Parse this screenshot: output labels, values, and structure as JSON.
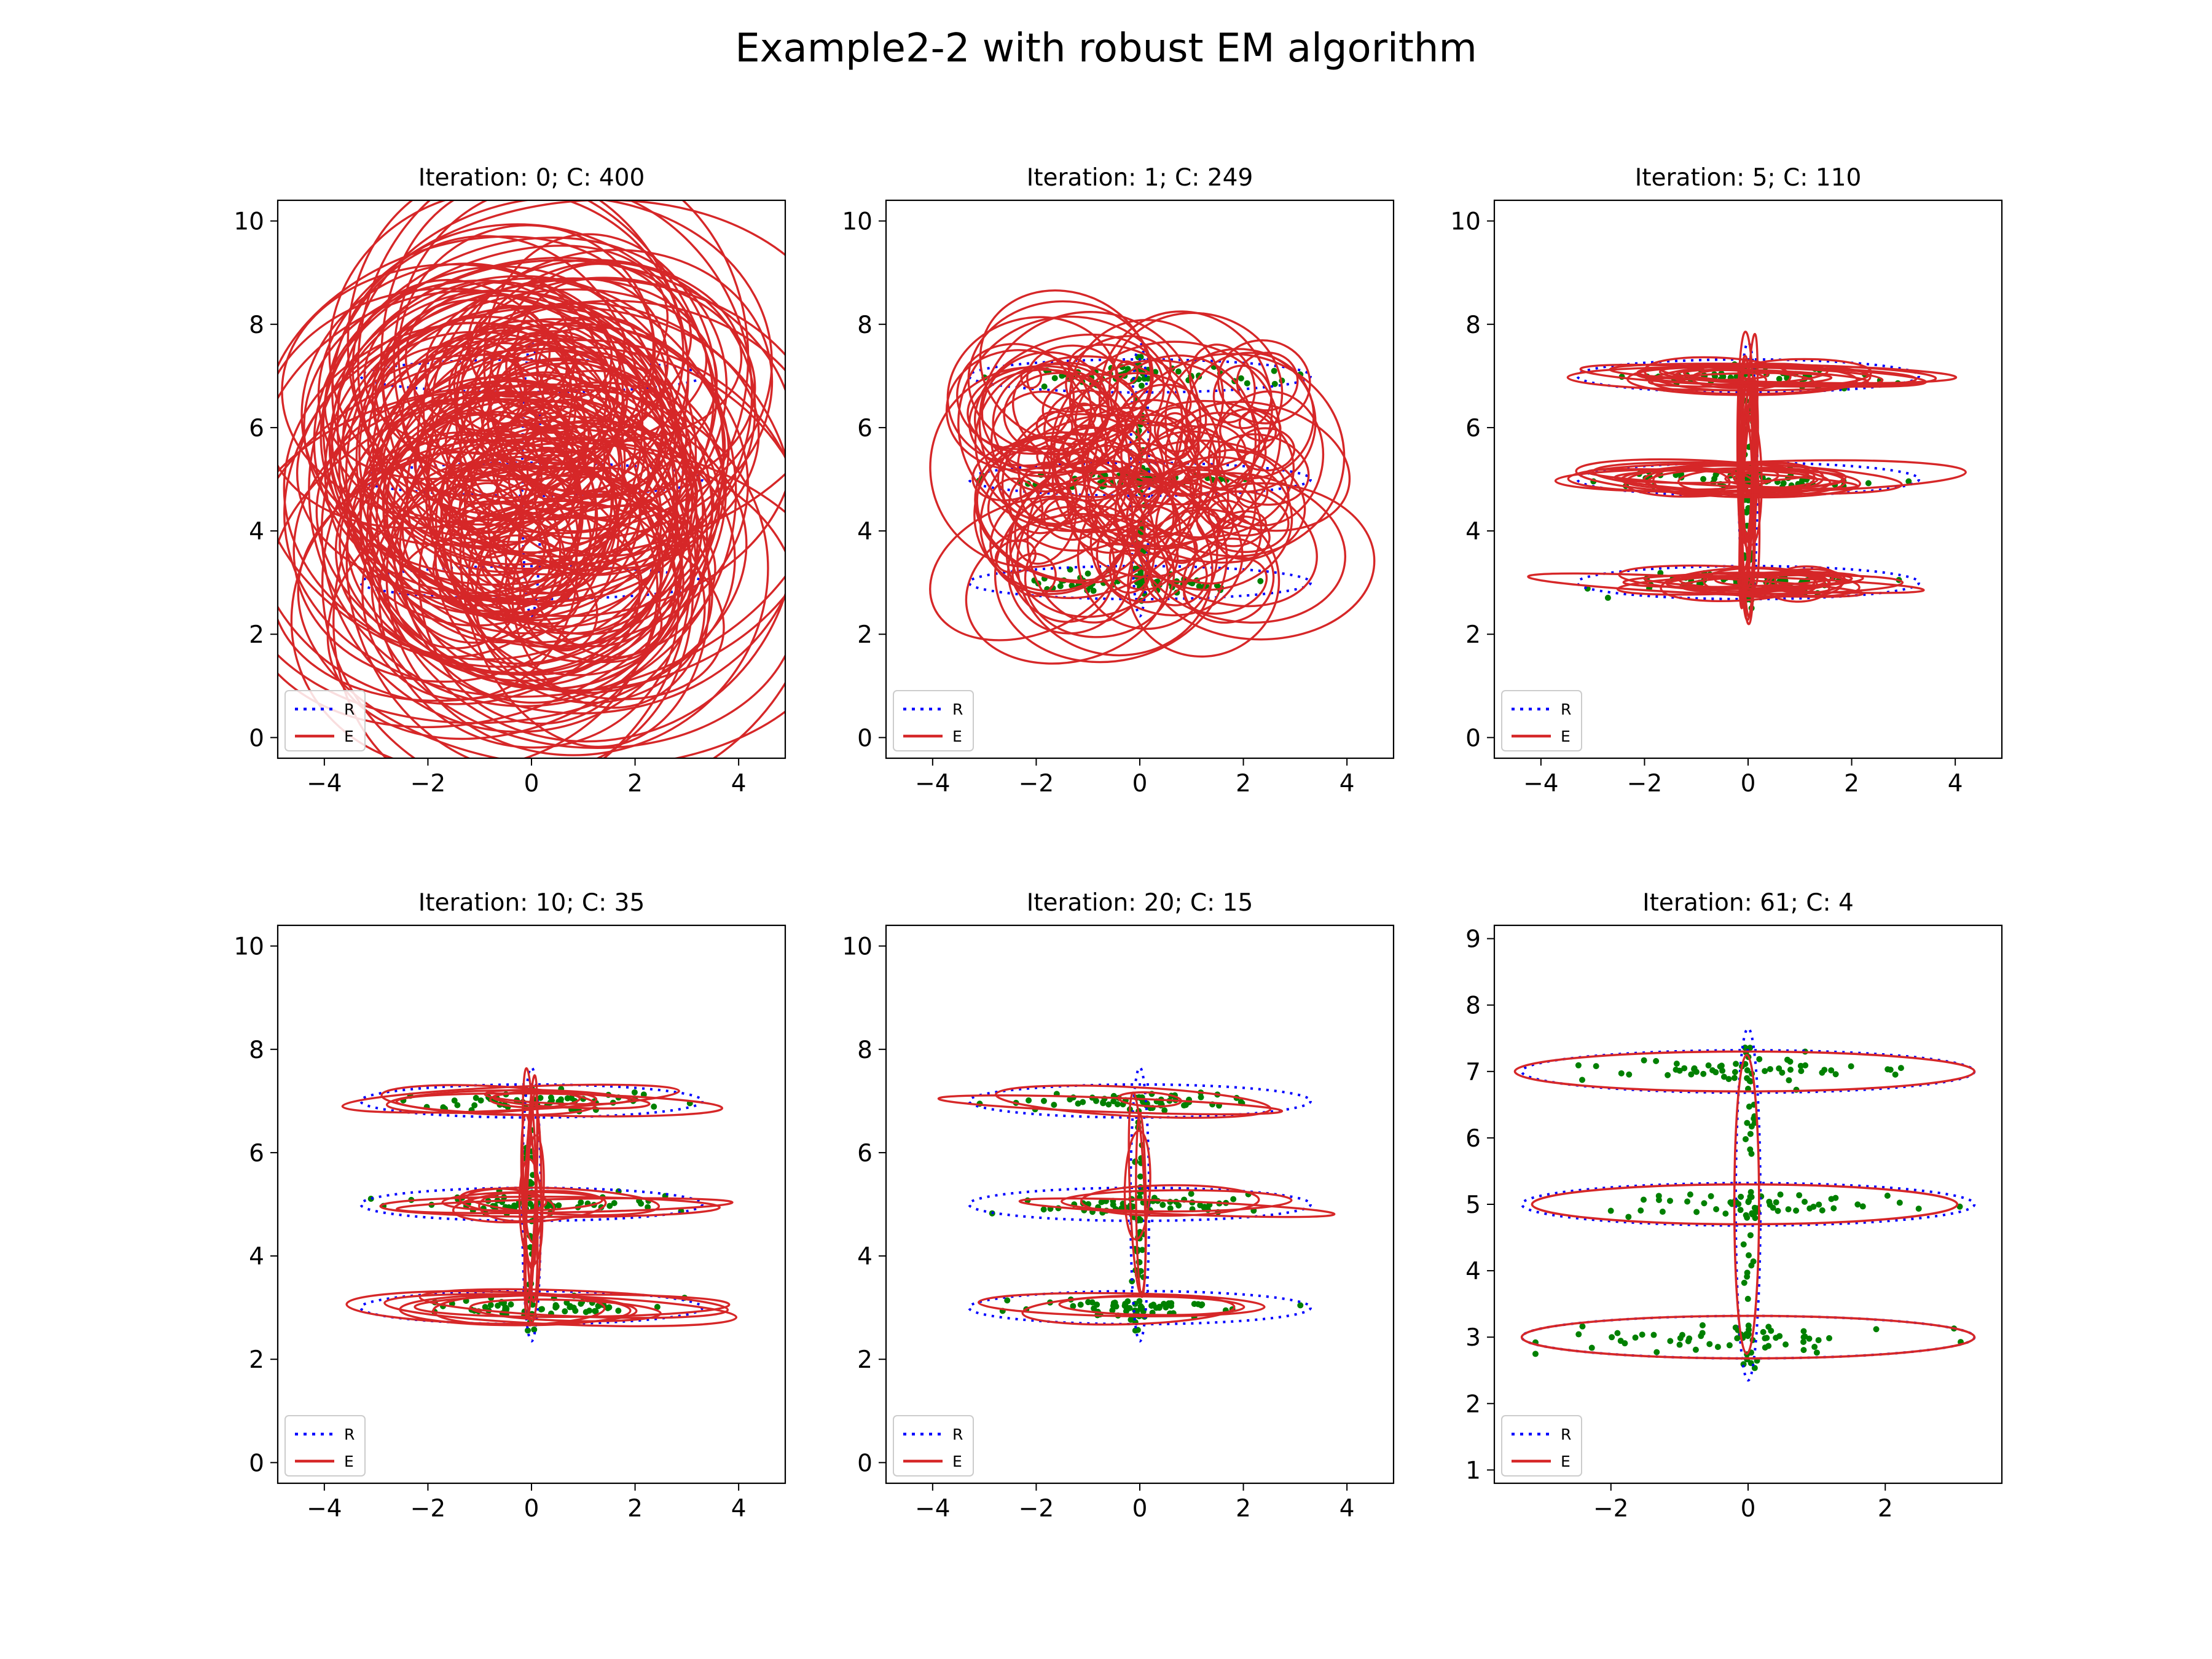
{
  "title": "Example2-2 with robust EM algorithm",
  "colors": {
    "reference": "#0000ff",
    "estimate": "#d62728",
    "points": "#008000",
    "axes": "#000000"
  },
  "legend": {
    "entries": [
      {
        "label": "R",
        "style": "dotted",
        "color": "#0000ff"
      },
      {
        "label": "E",
        "style": "solid",
        "color": "#d62728"
      }
    ],
    "placement": "lower left"
  },
  "chart_data": [
    {
      "type": "scatter",
      "title": "Iteration: 0; C: 400",
      "iteration": 0,
      "components": 400,
      "xlim": [
        -4.9,
        4.9
      ],
      "ylim": [
        -0.4,
        10.4
      ],
      "xticks": [
        -4,
        -2,
        0,
        2,
        4
      ],
      "yticks": [
        0,
        2,
        4,
        6,
        8,
        10
      ],
      "grid": false,
      "reference_ellipses": [
        {
          "cx": 0,
          "cy": 7,
          "rx": 3.3,
          "ry": 0.32
        },
        {
          "cx": 0,
          "cy": 5,
          "rx": 3.3,
          "ry": 0.32
        },
        {
          "cx": 0,
          "cy": 3,
          "rx": 3.3,
          "ry": 0.32
        },
        {
          "cx": 0,
          "cy": 5,
          "rx": 0.18,
          "ry": 2.65
        }
      ],
      "estimate_ellipses": "random",
      "estimate_count": 160,
      "estimate_spread": {
        "cx": [
          -1.5,
          1.5
        ],
        "cy": [
          2.5,
          7.5
        ],
        "r": [
          0.6,
          4.5
        ]
      },
      "points": "none"
    },
    {
      "type": "scatter",
      "title": "Iteration: 1; C: 249",
      "iteration": 1,
      "components": 249,
      "xlim": [
        -4.9,
        4.9
      ],
      "ylim": [
        -0.4,
        10.4
      ],
      "xticks": [
        -4,
        -2,
        0,
        2,
        4
      ],
      "yticks": [
        0,
        2,
        4,
        6,
        8,
        10
      ],
      "grid": false,
      "reference_ellipses": [
        {
          "cx": 0,
          "cy": 7,
          "rx": 3.3,
          "ry": 0.32
        },
        {
          "cx": 0,
          "cy": 5,
          "rx": 3.3,
          "ry": 0.32
        },
        {
          "cx": 0,
          "cy": 3,
          "rx": 3.3,
          "ry": 0.32
        },
        {
          "cx": 0,
          "cy": 5,
          "rx": 0.18,
          "ry": 2.65
        }
      ],
      "estimate_ellipses": "random",
      "estimate_count": 120,
      "estimate_spread": {
        "cx": [
          -2.5,
          2.5
        ],
        "cy": [
          2.8,
          7.2
        ],
        "r": [
          0.2,
          2.2
        ]
      },
      "points": "bands"
    },
    {
      "type": "scatter",
      "title": "Iteration: 5; C: 110",
      "iteration": 5,
      "components": 110,
      "xlim": [
        -4.9,
        4.9
      ],
      "ylim": [
        -0.4,
        10.4
      ],
      "xticks": [
        -4,
        -2,
        0,
        2,
        4
      ],
      "yticks": [
        0,
        2,
        4,
        6,
        8,
        10
      ],
      "grid": false,
      "reference_ellipses": [
        {
          "cx": 0,
          "cy": 7,
          "rx": 3.3,
          "ry": 0.32
        },
        {
          "cx": 0,
          "cy": 5,
          "rx": 3.3,
          "ry": 0.32
        },
        {
          "cx": 0,
          "cy": 3,
          "rx": 3.3,
          "ry": 0.32
        },
        {
          "cx": 0,
          "cy": 5,
          "rx": 0.18,
          "ry": 2.65
        }
      ],
      "estimate_ellipses": "bands",
      "estimate_count": 60,
      "points": "bands"
    },
    {
      "type": "scatter",
      "title": "Iteration: 10; C: 35",
      "iteration": 10,
      "components": 35,
      "xlim": [
        -4.9,
        4.9
      ],
      "ylim": [
        -0.4,
        10.4
      ],
      "xticks": [
        -4,
        -2,
        0,
        2,
        4
      ],
      "yticks": [
        0,
        2,
        4,
        6,
        8,
        10
      ],
      "grid": false,
      "reference_ellipses": [
        {
          "cx": 0,
          "cy": 7,
          "rx": 3.3,
          "ry": 0.32
        },
        {
          "cx": 0,
          "cy": 5,
          "rx": 3.3,
          "ry": 0.32
        },
        {
          "cx": 0,
          "cy": 3,
          "rx": 3.3,
          "ry": 0.32
        },
        {
          "cx": 0,
          "cy": 5,
          "rx": 0.18,
          "ry": 2.65
        }
      ],
      "estimate_ellipses": "bands",
      "estimate_count": 28,
      "points": "bands"
    },
    {
      "type": "scatter",
      "title": "Iteration: 20; C: 15",
      "iteration": 20,
      "components": 15,
      "xlim": [
        -4.9,
        4.9
      ],
      "ylim": [
        -0.4,
        10.4
      ],
      "xticks": [
        -4,
        -2,
        0,
        2,
        4
      ],
      "yticks": [
        0,
        2,
        4,
        6,
        8,
        10
      ],
      "grid": false,
      "reference_ellipses": [
        {
          "cx": 0,
          "cy": 7,
          "rx": 3.3,
          "ry": 0.32
        },
        {
          "cx": 0,
          "cy": 5,
          "rx": 3.3,
          "ry": 0.32
        },
        {
          "cx": 0,
          "cy": 3,
          "rx": 3.3,
          "ry": 0.32
        },
        {
          "cx": 0,
          "cy": 5,
          "rx": 0.18,
          "ry": 2.65
        }
      ],
      "estimate_ellipses": "bands",
      "estimate_count": 12,
      "points": "bands"
    },
    {
      "type": "scatter",
      "title": "Iteration: 61; C: 4",
      "iteration": 61,
      "components": 4,
      "xlim": [
        -3.7,
        3.7
      ],
      "ylim": [
        0.8,
        9.2
      ],
      "xticks": [
        -2,
        0,
        2
      ],
      "yticks": [
        1,
        2,
        3,
        4,
        5,
        6,
        7,
        8,
        9
      ],
      "grid": false,
      "reference_ellipses": [
        {
          "cx": 0,
          "cy": 7,
          "rx": 3.3,
          "ry": 0.32
        },
        {
          "cx": 0,
          "cy": 5,
          "rx": 3.3,
          "ry": 0.32
        },
        {
          "cx": 0,
          "cy": 3,
          "rx": 3.3,
          "ry": 0.32
        },
        {
          "cx": 0,
          "cy": 5,
          "rx": 0.18,
          "ry": 2.65
        }
      ],
      "estimate_ellipses": [
        {
          "cx": -0.05,
          "cy": 7.0,
          "rx": 3.35,
          "ry": 0.3
        },
        {
          "cx": -0.05,
          "cy": 5.0,
          "rx": 3.1,
          "ry": 0.3
        },
        {
          "cx": 0.0,
          "cy": 3.0,
          "rx": 3.3,
          "ry": 0.32
        },
        {
          "cx": -0.02,
          "cy": 5.0,
          "rx": 0.18,
          "ry": 2.25
        }
      ],
      "points": "bands"
    }
  ]
}
